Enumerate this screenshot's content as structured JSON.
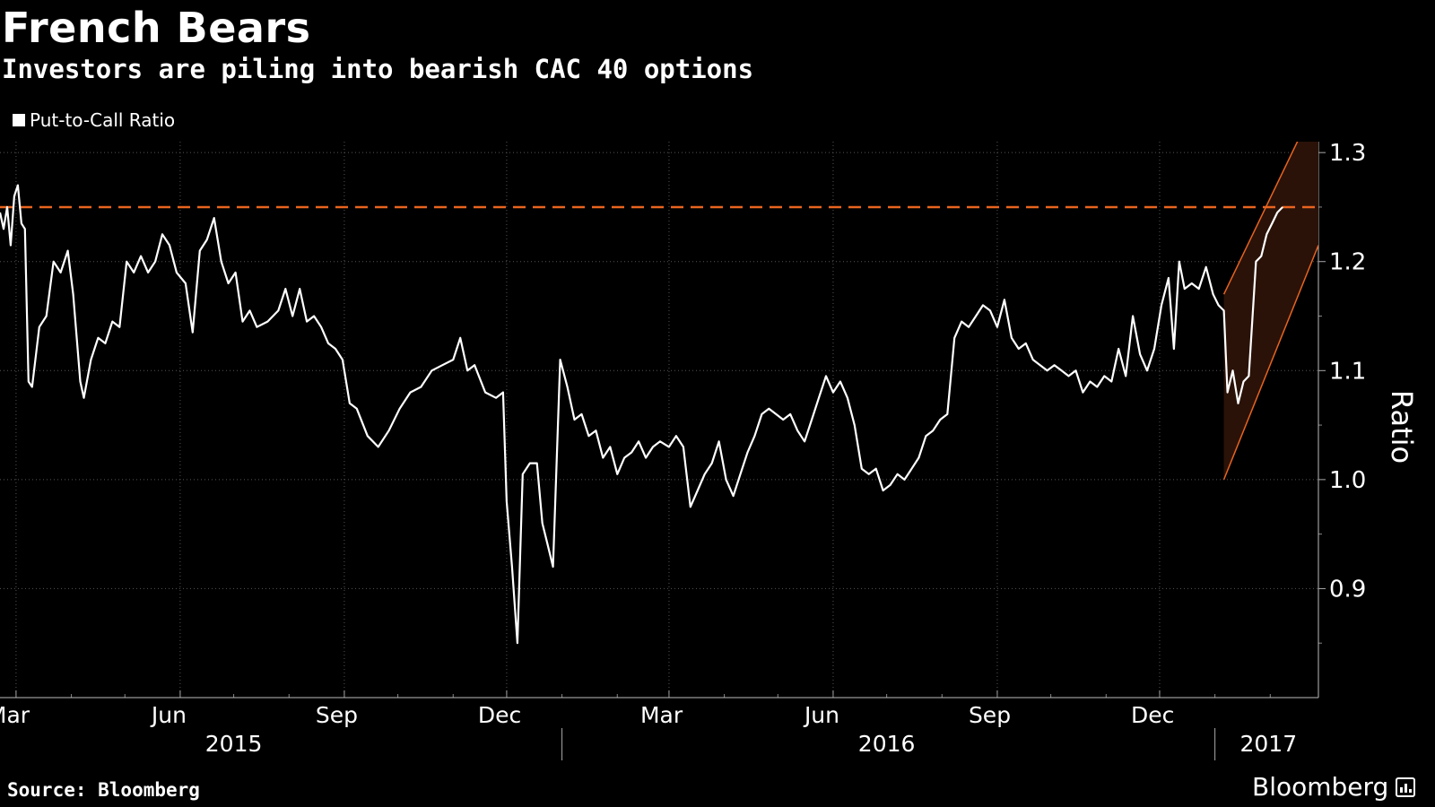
{
  "title": "French Bears",
  "subtitle": "Investors are piling into bearish CAC 40 options",
  "source": "Source: Bloomberg",
  "brand": "Bloomberg",
  "colors": {
    "background": "#000000",
    "line": "#ffffff",
    "reference_line": "#e8641f",
    "highlight_fill": "#2a1208",
    "highlight_edge": "#e8641f",
    "grid": "#555555"
  },
  "chart_data": {
    "type": "line",
    "ylabel": "Ratio",
    "yaxis_position": "right",
    "yticks": [
      0.9,
      1.0,
      1.1,
      1.2,
      1.3
    ],
    "ylim": [
      0.8,
      1.31
    ],
    "xlim": [
      "2015-02-20",
      "2017-02-28"
    ],
    "month_labels": [
      {
        "date": "2015-03-01",
        "label": "Mar"
      },
      {
        "date": "2015-06-01",
        "label": "Jun"
      },
      {
        "date": "2015-09-01",
        "label": "Sep"
      },
      {
        "date": "2015-12-01",
        "label": "Dec"
      },
      {
        "date": "2016-03-01",
        "label": "Mar"
      },
      {
        "date": "2016-06-01",
        "label": "Jun"
      },
      {
        "date": "2016-09-01",
        "label": "Sep"
      },
      {
        "date": "2016-12-01",
        "label": "Dec"
      }
    ],
    "year_labels": [
      {
        "center": "2015-07-01",
        "label": "2015"
      },
      {
        "center": "2016-07-01",
        "label": "2016"
      },
      {
        "center": "2017-01-31",
        "label": "2017"
      }
    ],
    "year_dividers": [
      "2016-01-01",
      "2017-01-01"
    ],
    "legend": [
      "Put-to-Call Ratio"
    ],
    "legend_position": "top-left",
    "reference_line": {
      "value": 1.25,
      "style": "dashed"
    },
    "highlight_channel": {
      "lower": [
        [
          "2017-01-06",
          1.0
        ],
        [
          "2017-02-28",
          1.215
        ]
      ],
      "upper": [
        [
          "2017-01-06",
          1.17
        ],
        [
          "2017-02-28",
          1.35
        ]
      ]
    },
    "series": [
      {
        "name": "Put-to-Call Ratio",
        "points": [
          [
            "2015-02-20",
            1.245
          ],
          [
            "2015-02-22",
            1.23
          ],
          [
            "2015-02-24",
            1.25
          ],
          [
            "2015-02-26",
            1.215
          ],
          [
            "2015-02-28",
            1.26
          ],
          [
            "2015-03-02",
            1.27
          ],
          [
            "2015-03-04",
            1.235
          ],
          [
            "2015-03-06",
            1.23
          ],
          [
            "2015-03-08",
            1.09
          ],
          [
            "2015-03-10",
            1.085
          ],
          [
            "2015-03-14",
            1.14
          ],
          [
            "2015-03-18",
            1.15
          ],
          [
            "2015-03-22",
            1.2
          ],
          [
            "2015-03-26",
            1.19
          ],
          [
            "2015-03-30",
            1.21
          ],
          [
            "2015-04-02",
            1.17
          ],
          [
            "2015-04-06",
            1.09
          ],
          [
            "2015-04-08",
            1.075
          ],
          [
            "2015-04-12",
            1.11
          ],
          [
            "2015-04-16",
            1.13
          ],
          [
            "2015-04-20",
            1.125
          ],
          [
            "2015-04-24",
            1.145
          ],
          [
            "2015-04-28",
            1.14
          ],
          [
            "2015-05-02",
            1.2
          ],
          [
            "2015-05-06",
            1.19
          ],
          [
            "2015-05-10",
            1.205
          ],
          [
            "2015-05-14",
            1.19
          ],
          [
            "2015-05-18",
            1.2
          ],
          [
            "2015-05-22",
            1.225
          ],
          [
            "2015-05-26",
            1.215
          ],
          [
            "2015-05-30",
            1.19
          ],
          [
            "2015-06-04",
            1.18
          ],
          [
            "2015-06-08",
            1.135
          ],
          [
            "2015-06-12",
            1.21
          ],
          [
            "2015-06-16",
            1.22
          ],
          [
            "2015-06-20",
            1.24
          ],
          [
            "2015-06-24",
            1.2
          ],
          [
            "2015-06-28",
            1.18
          ],
          [
            "2015-07-02",
            1.19
          ],
          [
            "2015-07-06",
            1.145
          ],
          [
            "2015-07-10",
            1.155
          ],
          [
            "2015-07-14",
            1.14
          ],
          [
            "2015-07-20",
            1.145
          ],
          [
            "2015-07-26",
            1.155
          ],
          [
            "2015-07-30",
            1.175
          ],
          [
            "2015-08-03",
            1.15
          ],
          [
            "2015-08-07",
            1.175
          ],
          [
            "2015-08-11",
            1.145
          ],
          [
            "2015-08-15",
            1.15
          ],
          [
            "2015-08-19",
            1.14
          ],
          [
            "2015-08-23",
            1.125
          ],
          [
            "2015-08-27",
            1.12
          ],
          [
            "2015-08-31",
            1.11
          ],
          [
            "2015-09-04",
            1.07
          ],
          [
            "2015-09-08",
            1.065
          ],
          [
            "2015-09-14",
            1.04
          ],
          [
            "2015-09-20",
            1.03
          ],
          [
            "2015-09-26",
            1.045
          ],
          [
            "2015-10-02",
            1.065
          ],
          [
            "2015-10-08",
            1.08
          ],
          [
            "2015-10-14",
            1.085
          ],
          [
            "2015-10-20",
            1.1
          ],
          [
            "2015-10-26",
            1.105
          ],
          [
            "2015-11-01",
            1.11
          ],
          [
            "2015-11-05",
            1.13
          ],
          [
            "2015-11-09",
            1.1
          ],
          [
            "2015-11-13",
            1.105
          ],
          [
            "2015-11-19",
            1.08
          ],
          [
            "2015-11-25",
            1.075
          ],
          [
            "2015-11-29",
            1.08
          ],
          [
            "2015-12-01",
            0.98
          ],
          [
            "2015-12-04",
            0.92
          ],
          [
            "2015-12-07",
            0.85
          ],
          [
            "2015-12-10",
            1.005
          ],
          [
            "2015-12-14",
            1.015
          ],
          [
            "2015-12-18",
            1.015
          ],
          [
            "2015-12-21",
            0.96
          ],
          [
            "2015-12-24",
            0.94
          ],
          [
            "2015-12-27",
            0.92
          ],
          [
            "2015-12-31",
            1.11
          ],
          [
            "2016-01-04",
            1.085
          ],
          [
            "2016-01-08",
            1.055
          ],
          [
            "2016-01-12",
            1.06
          ],
          [
            "2016-01-16",
            1.04
          ],
          [
            "2016-01-20",
            1.045
          ],
          [
            "2016-01-24",
            1.02
          ],
          [
            "2016-01-28",
            1.03
          ],
          [
            "2016-02-01",
            1.005
          ],
          [
            "2016-02-05",
            1.02
          ],
          [
            "2016-02-09",
            1.025
          ],
          [
            "2016-02-13",
            1.035
          ],
          [
            "2016-02-17",
            1.02
          ],
          [
            "2016-02-21",
            1.03
          ],
          [
            "2016-02-25",
            1.035
          ],
          [
            "2016-03-01",
            1.03
          ],
          [
            "2016-03-05",
            1.04
          ],
          [
            "2016-03-09",
            1.03
          ],
          [
            "2016-03-13",
            0.975
          ],
          [
            "2016-03-17",
            0.99
          ],
          [
            "2016-03-21",
            1.005
          ],
          [
            "2016-03-25",
            1.015
          ],
          [
            "2016-03-29",
            1.035
          ],
          [
            "2016-04-02",
            1.0
          ],
          [
            "2016-04-06",
            0.985
          ],
          [
            "2016-04-10",
            1.005
          ],
          [
            "2016-04-14",
            1.025
          ],
          [
            "2016-04-18",
            1.04
          ],
          [
            "2016-04-22",
            1.06
          ],
          [
            "2016-04-26",
            1.065
          ],
          [
            "2016-04-30",
            1.06
          ],
          [
            "2016-05-04",
            1.055
          ],
          [
            "2016-05-08",
            1.06
          ],
          [
            "2016-05-12",
            1.045
          ],
          [
            "2016-05-16",
            1.035
          ],
          [
            "2016-05-20",
            1.055
          ],
          [
            "2016-05-24",
            1.075
          ],
          [
            "2016-05-28",
            1.095
          ],
          [
            "2016-06-01",
            1.08
          ],
          [
            "2016-06-05",
            1.09
          ],
          [
            "2016-06-09",
            1.075
          ],
          [
            "2016-06-13",
            1.05
          ],
          [
            "2016-06-17",
            1.01
          ],
          [
            "2016-06-21",
            1.005
          ],
          [
            "2016-06-25",
            1.01
          ],
          [
            "2016-06-29",
            0.99
          ],
          [
            "2016-07-03",
            0.995
          ],
          [
            "2016-07-07",
            1.005
          ],
          [
            "2016-07-11",
            1.0
          ],
          [
            "2016-07-15",
            1.01
          ],
          [
            "2016-07-19",
            1.02
          ],
          [
            "2016-07-23",
            1.04
          ],
          [
            "2016-07-27",
            1.045
          ],
          [
            "2016-07-31",
            1.055
          ],
          [
            "2016-08-04",
            1.06
          ],
          [
            "2016-08-08",
            1.13
          ],
          [
            "2016-08-12",
            1.145
          ],
          [
            "2016-08-16",
            1.14
          ],
          [
            "2016-08-20",
            1.15
          ],
          [
            "2016-08-24",
            1.16
          ],
          [
            "2016-08-28",
            1.155
          ],
          [
            "2016-09-01",
            1.14
          ],
          [
            "2016-09-05",
            1.165
          ],
          [
            "2016-09-09",
            1.13
          ],
          [
            "2016-09-13",
            1.12
          ],
          [
            "2016-09-17",
            1.125
          ],
          [
            "2016-09-21",
            1.11
          ],
          [
            "2016-09-25",
            1.105
          ],
          [
            "2016-09-29",
            1.1
          ],
          [
            "2016-10-03",
            1.105
          ],
          [
            "2016-10-07",
            1.1
          ],
          [
            "2016-10-11",
            1.095
          ],
          [
            "2016-10-15",
            1.1
          ],
          [
            "2016-10-19",
            1.08
          ],
          [
            "2016-10-23",
            1.09
          ],
          [
            "2016-10-27",
            1.085
          ],
          [
            "2016-10-31",
            1.095
          ],
          [
            "2016-11-04",
            1.09
          ],
          [
            "2016-11-08",
            1.12
          ],
          [
            "2016-11-12",
            1.095
          ],
          [
            "2016-11-16",
            1.15
          ],
          [
            "2016-11-20",
            1.115
          ],
          [
            "2016-11-24",
            1.1
          ],
          [
            "2016-11-28",
            1.12
          ],
          [
            "2016-12-02",
            1.16
          ],
          [
            "2016-12-06",
            1.185
          ],
          [
            "2016-12-09",
            1.12
          ],
          [
            "2016-12-12",
            1.2
          ],
          [
            "2016-12-15",
            1.175
          ],
          [
            "2016-12-19",
            1.18
          ],
          [
            "2016-12-23",
            1.175
          ],
          [
            "2016-12-27",
            1.195
          ],
          [
            "2016-12-31",
            1.17
          ],
          [
            "2017-01-03",
            1.16
          ],
          [
            "2017-01-06",
            1.155
          ],
          [
            "2017-01-08",
            1.08
          ],
          [
            "2017-01-11",
            1.1
          ],
          [
            "2017-01-14",
            1.07
          ],
          [
            "2017-01-17",
            1.09
          ],
          [
            "2017-01-20",
            1.095
          ],
          [
            "2017-01-24",
            1.2
          ],
          [
            "2017-01-27",
            1.205
          ],
          [
            "2017-01-30",
            1.225
          ],
          [
            "2017-02-02",
            1.235
          ],
          [
            "2017-02-05",
            1.245
          ],
          [
            "2017-02-08",
            1.25
          ]
        ]
      }
    ]
  }
}
